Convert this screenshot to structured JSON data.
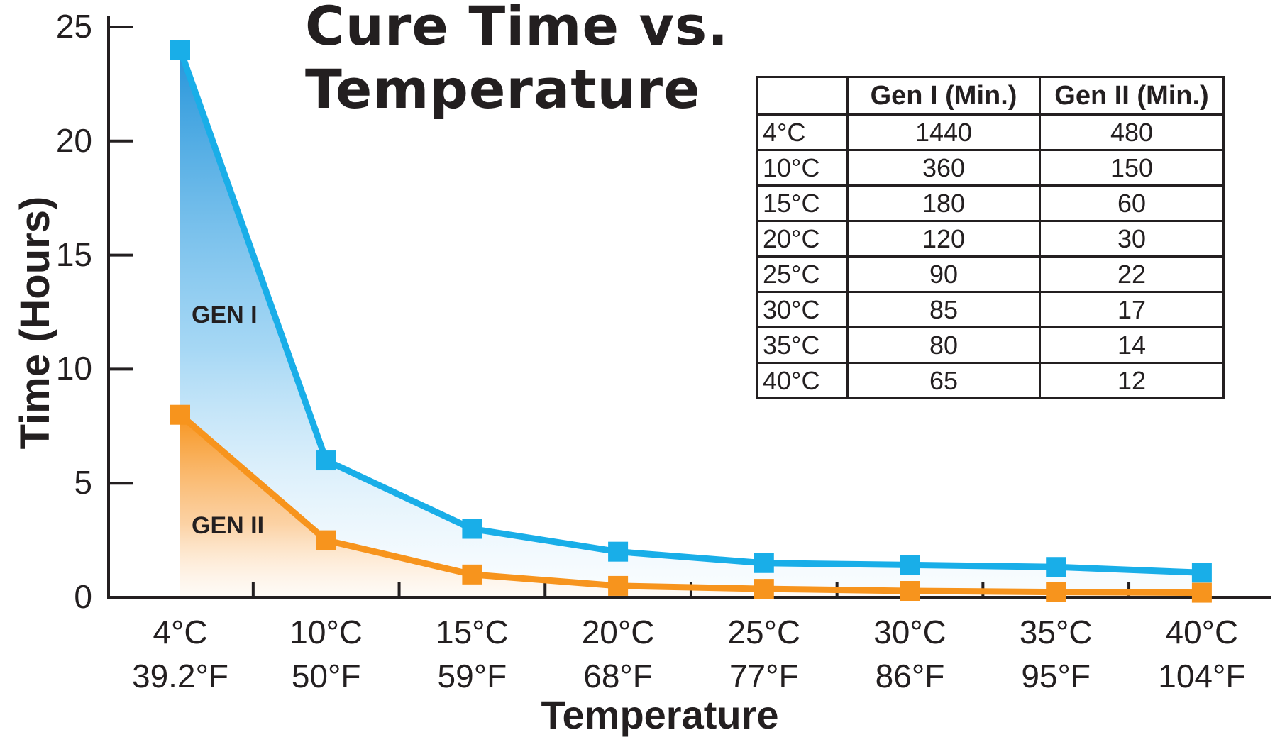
{
  "chart_data": {
    "type": "area",
    "title": "Cure Time vs. Temperature",
    "xlabel": "Temperature",
    "ylabel": "Time (Hours)",
    "ylim": [
      0,
      25
    ],
    "yticks": [
      "0",
      "5",
      "10",
      "15",
      "20",
      "25"
    ],
    "categories": [
      {
        "c": "4°C",
        "f": "39.2°F"
      },
      {
        "c": "10°C",
        "f": "50°F"
      },
      {
        "c": "15°C",
        "f": "59°F"
      },
      {
        "c": "20°C",
        "f": "68°F"
      },
      {
        "c": "25°C",
        "f": "77°F"
      },
      {
        "c": "30°C",
        "f": "86°F"
      },
      {
        "c": "35°C",
        "f": "95°F"
      },
      {
        "c": "40°C",
        "f": "104°F"
      }
    ],
    "series": [
      {
        "name": "GEN I",
        "color": "#19aee8",
        "values": [
          24,
          6,
          3,
          2,
          1.5,
          1.42,
          1.33,
          1.08
        ]
      },
      {
        "name": "GEN II",
        "color": "#f7941d",
        "values": [
          8,
          2.5,
          1,
          0.5,
          0.37,
          0.28,
          0.23,
          0.2
        ]
      }
    ],
    "grid": false,
    "table": {
      "headers": [
        "",
        "Gen I (Min.)",
        "Gen II (Min.)"
      ],
      "rows": [
        [
          "4°C",
          "1440",
          "480"
        ],
        [
          "10°C",
          "360",
          "150"
        ],
        [
          "15°C",
          "180",
          "60"
        ],
        [
          "20°C",
          "120",
          "30"
        ],
        [
          "25°C",
          "90",
          "22"
        ],
        [
          "30°C",
          "85",
          "17"
        ],
        [
          "35°C",
          "80",
          "14"
        ],
        [
          "40°C",
          "65",
          "12"
        ]
      ]
    }
  }
}
